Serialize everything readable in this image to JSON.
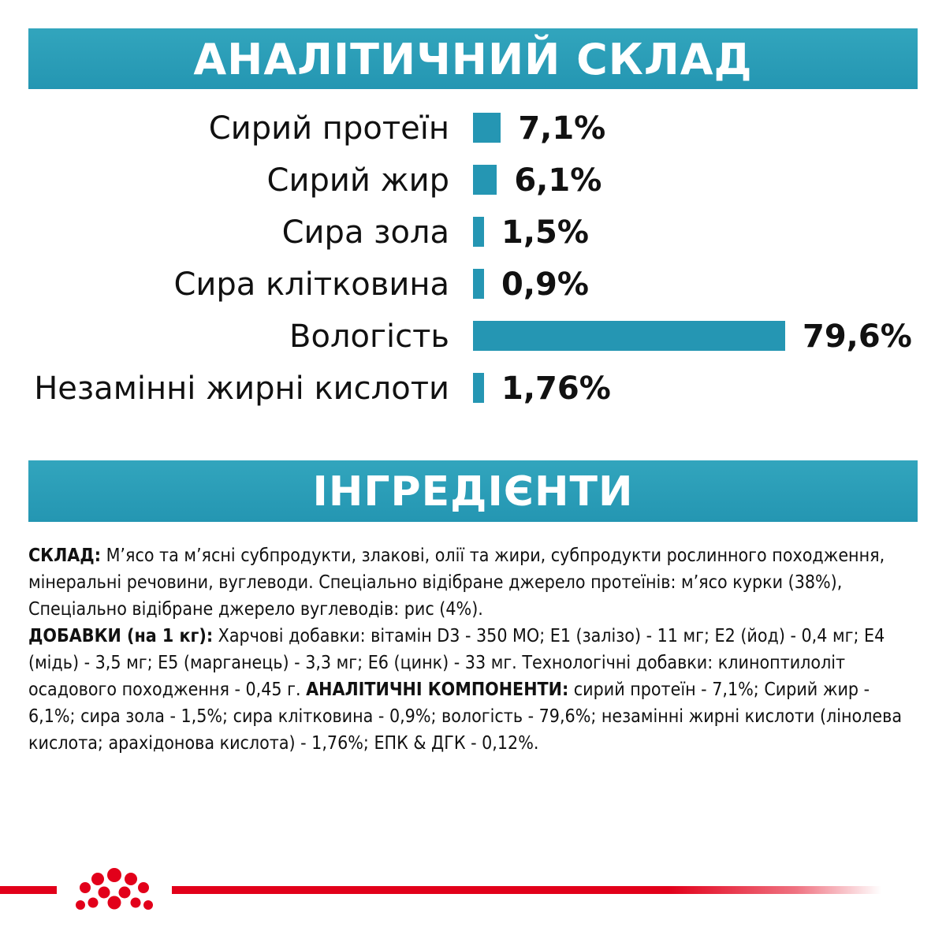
{
  "header": {
    "analytical_title": "АНАЛІТИЧНИЙ СКЛАД",
    "ingredients_title": "ІНГРЕДІЄНТИ"
  },
  "colors": {
    "accent": "#2596b3",
    "brand_red": "#e2001a"
  },
  "chart_data": {
    "type": "bar",
    "orientation": "horizontal",
    "categories": [
      "Сирий протеїн",
      "Сирий жир",
      "Сира зола",
      "Сира клітковина",
      "Вологість",
      "Незамінні жирні кислоти"
    ],
    "values": [
      7.1,
      6.1,
      1.5,
      0.9,
      79.6,
      1.76
    ],
    "value_labels": [
      "7,1%",
      "6,1%",
      "1,5%",
      "0,9%",
      "79,6%",
      "1,76%"
    ],
    "unit": "%",
    "xlim": [
      0,
      80
    ],
    "grid": false,
    "legend": "none"
  },
  "ingredients": {
    "p1_label": "СКЛАД:",
    "p1_text": " М’ясо та м’ясні субпродукти, злакові, олії та жири, субпродукти рослинного походження, мінеральні речовини, вуглеводи. Спеціально відібране джерело протеїнів: м’ясо курки (38%), Спеціально відібране джерело вуглеводів: рис (4%).",
    "p2_label": "ДОБАВКИ (на 1 кг):",
    "p2_text": " Харчові добавки: вітамін D3 - 350 МО; Е1 (залізо) - 11 мг; Е2 (йод) - 0,4 мг; Е4 (мідь) - 3,5 мг; Е5 (марганець) - 3,3 мг; Е6 (цинк) - 33 мг. Технологічні добавки: клиноптилоліт осадового походження - 0,45 г. ",
    "p3_label": "АНАЛІТИЧНІ КОМПОНЕНТИ:",
    "p3_text": " сирий протеїн - 7,1%; Сирий жир - 6,1%; сира зола - 1,5%; сира клітковина - 0,9%; вологість - 79,6%; незамінні жирні кислоти (лінолева кислота; арахідонова кислота) - 1,76%;  ЕПК & ДГК - 0,12%."
  },
  "footer": {
    "logo": "royal-canin-crown-logo"
  }
}
